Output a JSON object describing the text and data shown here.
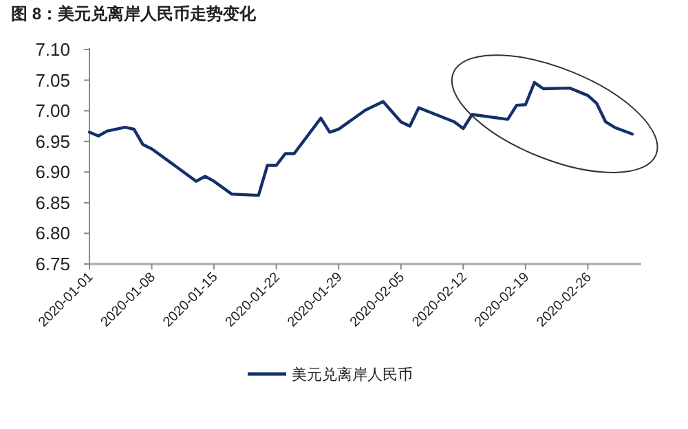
{
  "chart_data": {
    "type": "line",
    "title": "图 8：美元兑离岸人民币走势变化",
    "x": [
      "2020-01-01",
      "2020-01-02",
      "2020-01-03",
      "2020-01-05",
      "2020-01-06",
      "2020-01-07",
      "2020-01-08",
      "2020-01-13",
      "2020-01-14",
      "2020-01-15",
      "2020-01-17",
      "2020-01-20",
      "2020-01-21",
      "2020-01-22",
      "2020-01-23",
      "2020-01-24",
      "2020-01-27",
      "2020-01-28",
      "2020-01-29",
      "2020-02-01",
      "2020-02-03",
      "2020-02-05",
      "2020-02-06",
      "2020-02-07",
      "2020-02-11",
      "2020-02-12",
      "2020-02-13",
      "2020-02-17",
      "2020-02-18",
      "2020-02-19",
      "2020-02-20",
      "2020-02-21",
      "2020-02-24",
      "2020-02-26",
      "2020-02-27",
      "2020-02-28",
      "2020-02-29",
      "2020-03-02"
    ],
    "series": [
      {
        "name": "美元兑离岸人民币",
        "color": "#14306b",
        "values": [
          6.965,
          6.959,
          6.967,
          6.973,
          6.97,
          6.945,
          6.938,
          6.885,
          6.893,
          6.885,
          6.864,
          6.862,
          6.911,
          6.911,
          6.93,
          6.93,
          6.988,
          6.965,
          6.97,
          7.001,
          7.015,
          6.982,
          6.975,
          7.005,
          6.982,
          6.971,
          6.994,
          6.986,
          7.009,
          7.01,
          7.046,
          7.036,
          7.037,
          7.025,
          7.012,
          6.982,
          6.973,
          6.962
        ]
      }
    ],
    "xlim": [
      "2020-01-01",
      "2020-03-03"
    ],
    "xticks": [
      "2020-01-01",
      "2020-01-08",
      "2020-01-15",
      "2020-01-22",
      "2020-01-29",
      "2020-02-05",
      "2020-02-12",
      "2020-02-19",
      "2020-02-26"
    ],
    "ylim": [
      6.75,
      7.1
    ],
    "yticks": [
      {
        "value": 6.75,
        "label": "6.75"
      },
      {
        "value": 6.8,
        "label": "6.80"
      },
      {
        "value": 6.85,
        "label": "6.85"
      },
      {
        "value": 6.9,
        "label": "6.90"
      },
      {
        "value": 6.95,
        "label": "6.95"
      },
      {
        "value": 7.0,
        "label": "7.00"
      },
      {
        "value": 7.05,
        "label": "7.05"
      },
      {
        "value": 7.1,
        "label": "7.10"
      }
    ],
    "grid": false,
    "legend": "bottom",
    "marker": "none",
    "line_style": "solid"
  }
}
